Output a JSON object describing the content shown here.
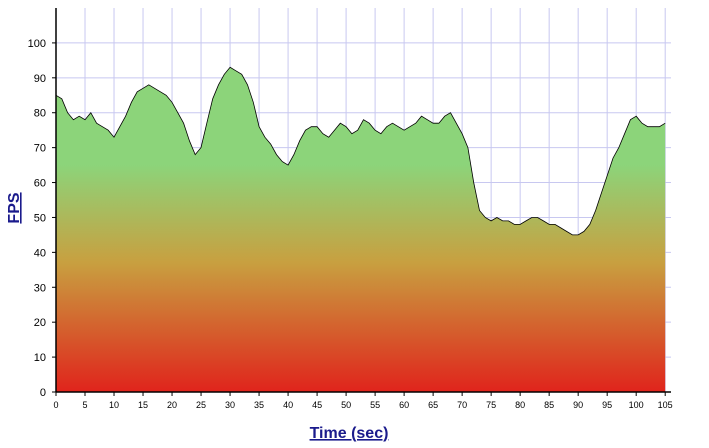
{
  "chart_data": {
    "type": "area",
    "title": "",
    "xlabel": "Time (sec)",
    "ylabel": "FPS",
    "xlim": [
      0,
      106
    ],
    "ylim": [
      0,
      110
    ],
    "x_ticks": [
      0,
      5,
      10,
      15,
      20,
      25,
      30,
      35,
      40,
      45,
      50,
      55,
      60,
      65,
      70,
      75,
      80,
      85,
      90,
      95,
      100,
      105
    ],
    "y_ticks": [
      0,
      10,
      20,
      30,
      40,
      50,
      60,
      70,
      80,
      90,
      100
    ],
    "grid": true,
    "legend": "none",
    "colors": {
      "grid": "#c8c8f0",
      "line": "#000000",
      "fill_top": "#8cd47a",
      "fill_bottom": "#e0241c",
      "axis_title": "#1a1a8c"
    },
    "series": [
      {
        "x": [
          0,
          1,
          2,
          3,
          4,
          5,
          6,
          7,
          8,
          9,
          10,
          11,
          12,
          13,
          14,
          15,
          16,
          17,
          18,
          19,
          20,
          21,
          22,
          23,
          24,
          25,
          26,
          27,
          28,
          29,
          30,
          31,
          32,
          33,
          34,
          35,
          36,
          37,
          38,
          39,
          40,
          41,
          42,
          43,
          44,
          45,
          46,
          47,
          48,
          49,
          50,
          51,
          52,
          53,
          54,
          55,
          56,
          57,
          58,
          59,
          60,
          61,
          62,
          63,
          64,
          65,
          66,
          67,
          68,
          69,
          70,
          71,
          72,
          73,
          74,
          75,
          76,
          77,
          78,
          79,
          80,
          81,
          82,
          83,
          84,
          85,
          86,
          87,
          88,
          89,
          90,
          91,
          92,
          93,
          94,
          95,
          96,
          97,
          98,
          99,
          100,
          101,
          102,
          103,
          104,
          105
        ],
        "values": [
          85,
          84,
          80,
          78,
          79,
          78,
          80,
          77,
          76,
          75,
          73,
          76,
          79,
          83,
          86,
          87,
          88,
          87,
          86,
          85,
          83,
          80,
          77,
          72,
          68,
          70,
          77,
          84,
          88,
          91,
          93,
          92,
          91,
          88,
          83,
          76,
          73,
          71,
          68,
          66,
          65,
          68,
          72,
          75,
          76,
          76,
          74,
          73,
          75,
          77,
          76,
          74,
          75,
          78,
          77,
          75,
          74,
          76,
          77,
          76,
          75,
          76,
          77,
          79,
          78,
          77,
          77,
          79,
          80,
          77,
          74,
          70,
          60,
          52,
          50,
          49,
          50,
          49,
          49,
          48,
          48,
          49,
          50,
          50,
          49,
          48,
          48,
          47,
          46,
          45,
          45,
          46,
          48,
          52,
          57,
          62,
          67,
          70,
          74,
          78,
          79,
          77,
          76,
          76,
          76,
          77
        ]
      }
    ]
  }
}
